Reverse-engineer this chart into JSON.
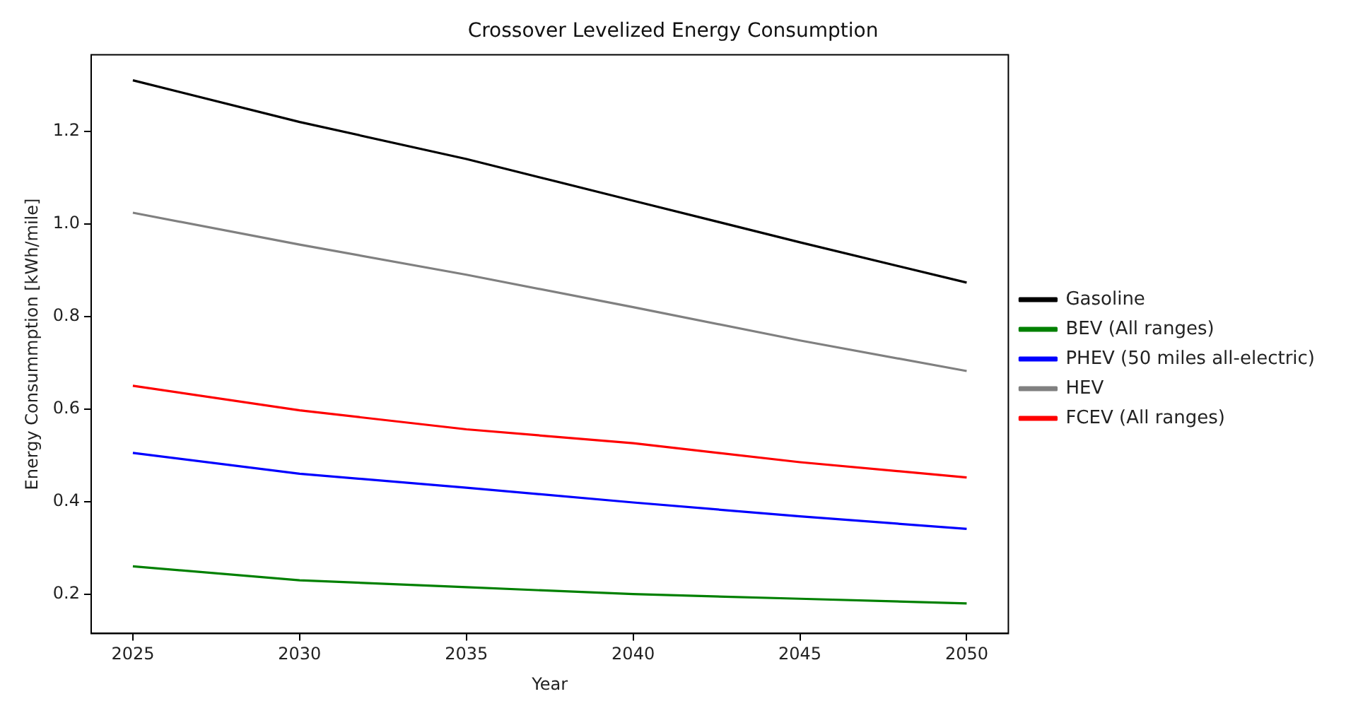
{
  "chart_data": {
    "type": "line",
    "title": "Crossover Levelized Energy Consumption",
    "xlabel": "Year",
    "ylabel": "Energy Consummption [kWh/mile]",
    "x": [
      2025,
      2030,
      2035,
      2040,
      2045,
      2050
    ],
    "series": [
      {
        "name": "Gasoline",
        "color": "#000000",
        "values": [
          1.31,
          1.22,
          1.14,
          1.05,
          0.96,
          0.873
        ]
      },
      {
        "name": "BEV (All ranges)",
        "color": "#008000",
        "values": [
          0.26,
          0.23,
          0.215,
          0.2,
          0.19,
          0.18
        ]
      },
      {
        "name": "PHEV (50 miles all-electric)",
        "color": "#0000ff",
        "values": [
          0.505,
          0.46,
          0.43,
          0.398,
          0.368,
          0.341
        ]
      },
      {
        "name": "HEV",
        "color": "#808080",
        "values": [
          1.024,
          0.955,
          0.89,
          0.82,
          0.748,
          0.682
        ]
      },
      {
        "name": "FCEV (All ranges)",
        "color": "#ff0000",
        "values": [
          0.65,
          0.597,
          0.556,
          0.526,
          0.485,
          0.452
        ]
      }
    ],
    "xlim": [
      2023.75,
      2051.25
    ],
    "xticks": [
      2025,
      2030,
      2035,
      2040,
      2045,
      2050
    ],
    "ylim": [
      0.115,
      1.365
    ],
    "yticks": [
      {
        "value": 0.2,
        "label": "0.2"
      },
      {
        "value": 0.4,
        "label": "0.4"
      },
      {
        "value": 0.6,
        "label": "0.6"
      },
      {
        "value": 0.8,
        "label": "0.8"
      },
      {
        "value": 1.0,
        "label": "1.0"
      },
      {
        "value": 1.2,
        "label": "1.2"
      }
    ],
    "grid": false,
    "legend": "right",
    "marker": "none",
    "line_style": "solid"
  }
}
